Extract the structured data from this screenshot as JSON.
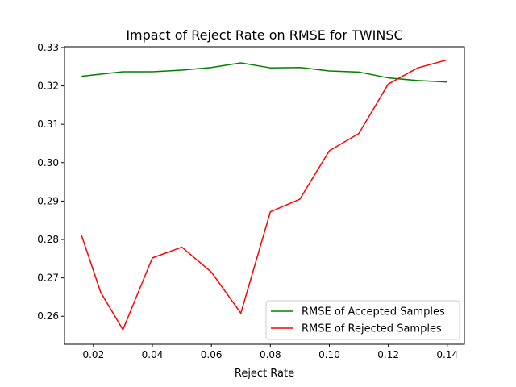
{
  "chart_data": {
    "type": "line",
    "title": "Impact of Reject Rate on RMSE for TWINSC",
    "xlabel": "Reject Rate",
    "ylabel": "",
    "xlim": [
      0.0102,
      0.1458
    ],
    "ylim": [
      0.2527,
      0.3302
    ],
    "xticks": [
      0.02,
      0.04,
      0.06,
      0.08,
      0.1,
      0.12,
      0.14
    ],
    "xtick_labels": [
      "0.02",
      "0.04",
      "0.06",
      "0.08",
      "0.10",
      "0.12",
      "0.14"
    ],
    "yticks": [
      0.26,
      0.27,
      0.28,
      0.29,
      0.3,
      0.31,
      0.32,
      0.33
    ],
    "ytick_labels": [
      "0.26",
      "0.27",
      "0.28",
      "0.29",
      "0.30",
      "0.31",
      "0.32",
      "0.33"
    ],
    "grid": false,
    "legend_position": "lower-right",
    "x": [
      0.016,
      0.03,
      0.04,
      0.05,
      0.06,
      0.07,
      0.08,
      0.09,
      0.1,
      0.11,
      0.12,
      0.13,
      0.14
    ],
    "series": [
      {
        "name": "RMSE of Accepted Samples",
        "color": "#008000",
        "values": [
          0.3225,
          0.3237,
          0.3237,
          0.3241,
          0.3248,
          0.326,
          0.3247,
          0.3248,
          0.3239,
          0.3236,
          0.3221,
          0.3214,
          0.321
        ]
      },
      {
        "name": "RMSE of Rejected Samples",
        "color": "#ff0000",
        "values": [
          0.281,
          0.2662,
          0.2565,
          0.2752,
          0.278,
          0.2715,
          0.2608,
          0.2872,
          0.2905,
          0.3031,
          0.3076,
          0.3205,
          0.3247,
          0.3268
        ],
        "x": [
          0.016,
          0.0225,
          0.03,
          0.04,
          0.05,
          0.06,
          0.07,
          0.08,
          0.09,
          0.1,
          0.11,
          0.12,
          0.13,
          0.14
        ]
      }
    ]
  }
}
